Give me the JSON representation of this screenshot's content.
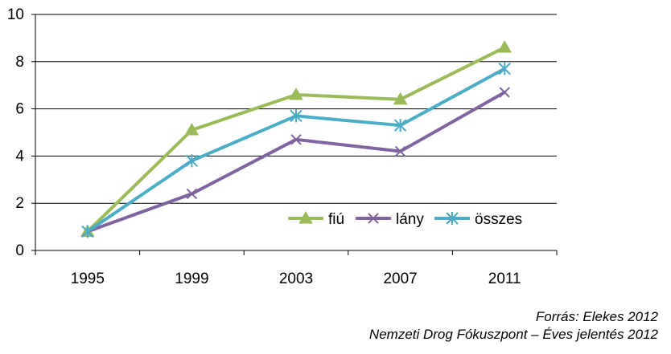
{
  "chart_data": {
    "type": "line",
    "title": "",
    "xlabel": "",
    "ylabel": "",
    "categories": [
      "1995",
      "1999",
      "2003",
      "2007",
      "2011"
    ],
    "ylim": [
      0,
      10
    ],
    "yticks": [
      0,
      2,
      4,
      6,
      8,
      10
    ],
    "grid": "horizontal",
    "legend_position": "inside-bottom-right",
    "series": [
      {
        "name": "fiú",
        "color": "#9BBB59",
        "marker": "triangle",
        "values": [
          0.8,
          5.1,
          6.6,
          6.4,
          8.6
        ]
      },
      {
        "name": "lány",
        "color": "#8064A2",
        "marker": "x",
        "values": [
          0.8,
          2.4,
          4.7,
          4.2,
          6.7
        ]
      },
      {
        "name": "összes",
        "color": "#4BACC6",
        "marker": "star",
        "values": [
          0.8,
          3.8,
          5.7,
          5.3,
          7.7
        ]
      }
    ]
  },
  "source": {
    "line1": "Forrás: Elekes 2012",
    "line2": "Nemzeti Drog Fókuszpont – Éves jelentés 2012"
  }
}
